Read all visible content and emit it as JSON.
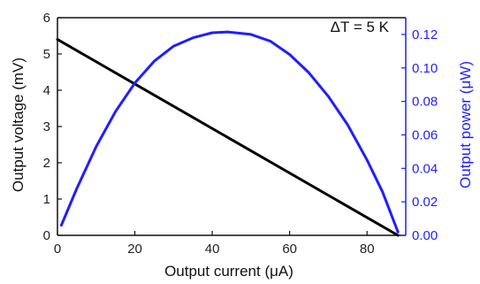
{
  "chart_data": {
    "type": "line",
    "annotation": "ΔT = 5 K",
    "xlabel": "Output current (μA)",
    "ylabel_left": "Output voltage (mV)",
    "ylabel_right": "Output power (μW)",
    "xlim": [
      0,
      90
    ],
    "ylim_left": [
      0,
      6
    ],
    "ylim_right": [
      0,
      0.13
    ],
    "xticks": [
      0,
      20,
      40,
      60,
      80
    ],
    "yticks_left": [
      0,
      1,
      2,
      3,
      4,
      5,
      6
    ],
    "yticks_right": [
      0.0,
      0.02,
      0.04,
      0.06,
      0.08,
      0.1,
      0.12
    ],
    "yticks_right_labels": [
      "0.00",
      "0.02",
      "0.04",
      "0.06",
      "0.08",
      "0.10",
      "0.12"
    ],
    "grid": false,
    "series": [
      {
        "axis": "left",
        "color": "#000000",
        "x": [
          0,
          88
        ],
        "y": [
          5.4,
          0
        ]
      },
      {
        "axis": "right",
        "color": "#1f1fff",
        "x": [
          1,
          5,
          10,
          15,
          20,
          25,
          30,
          35,
          40,
          44,
          50,
          55,
          60,
          65,
          70,
          75,
          80,
          84,
          88
        ],
        "y": [
          0.006,
          0.028,
          0.053,
          0.074,
          0.091,
          0.104,
          0.113,
          0.118,
          0.121,
          0.1215,
          0.12,
          0.116,
          0.108,
          0.097,
          0.083,
          0.066,
          0.045,
          0.026,
          0.002
        ]
      }
    ],
    "colors": {
      "left_axis": "#111111",
      "right_axis": "#1f1fff"
    }
  }
}
